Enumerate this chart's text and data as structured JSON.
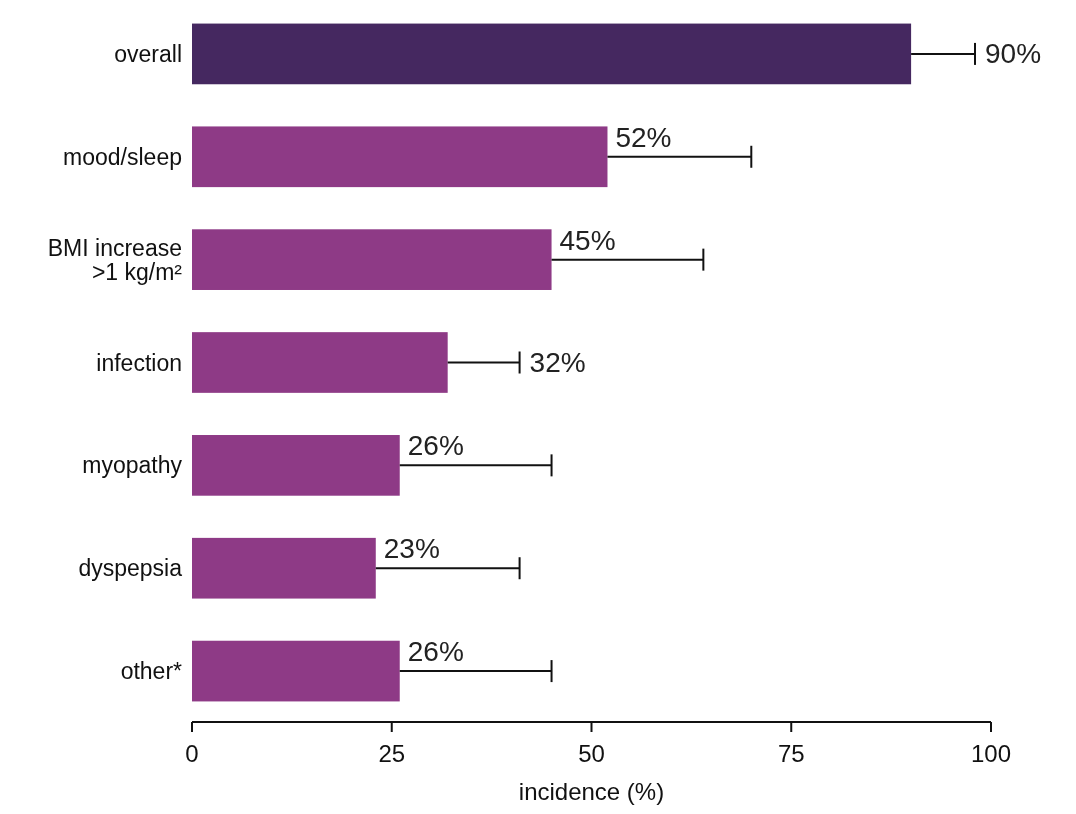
{
  "chart_data": {
    "type": "bar",
    "orientation": "horizontal",
    "xlabel": "incidence (%)",
    "categories": [
      "overall",
      "mood/sleep",
      "BMI increase\n>1 kg/m²",
      "infection",
      "myopathy",
      "dyspepsia",
      "other*"
    ],
    "values": [
      90,
      52,
      45,
      32,
      26,
      23,
      26
    ],
    "colors": [
      "#452860",
      "#8e3a86",
      "#8e3a86",
      "#8e3a86",
      "#8e3a86",
      "#8e3a86",
      "#8e3a86"
    ],
    "errors": [
      [
        90,
        98
      ],
      [
        52,
        70
      ],
      [
        45,
        64
      ],
      [
        32,
        41
      ],
      [
        26,
        45
      ],
      [
        23,
        41
      ],
      [
        26,
        45
      ]
    ],
    "value_labels": [
      "90%",
      "52%",
      "45%",
      "32%",
      "26%",
      "23%",
      "26%"
    ],
    "xlim": [
      0,
      100
    ],
    "xticks": [
      0,
      25,
      50,
      75,
      100
    ],
    "grid": false
  }
}
